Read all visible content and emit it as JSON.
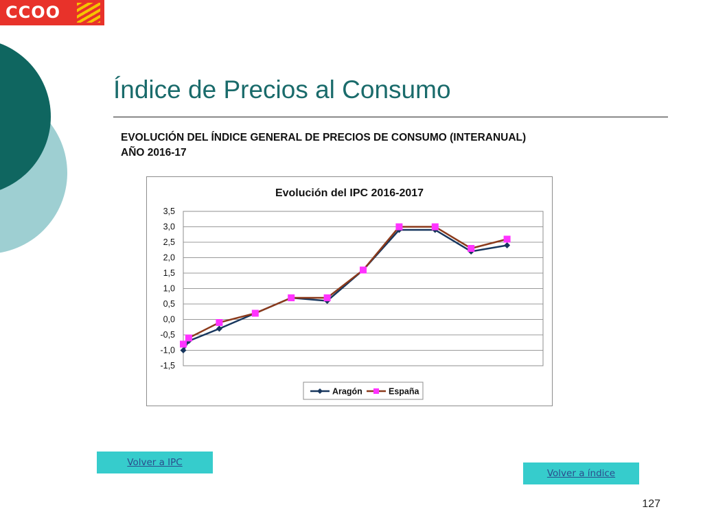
{
  "logo": {
    "text": "CCOO"
  },
  "slide": {
    "title": "Índice de Precios al Consumo",
    "subtitle_line1": "EVOLUCIÓN DEL ÍNDICE GENERAL DE PRECIOS DE CONSUMO (INTERANUAL)",
    "subtitle_line2": "AÑO 2016-17",
    "page_number": "127"
  },
  "nav": {
    "back_ipc": "Volver a IPC",
    "back_index": "Volver a índice"
  },
  "colors": {
    "aragon": "#17365d",
    "espana_line": "#8b3a1b",
    "espana_marker": "#ff33ff",
    "title": "#1a6b6b",
    "button": "#36cccc"
  },
  "chart_data": {
    "type": "line",
    "title": "Evolución del IPC 2016-2017",
    "xlabel": "",
    "ylabel": "",
    "ylim": [
      -1.5,
      3.5
    ],
    "y_ticks": [
      "3,5",
      "3,0",
      "2,5",
      "2,0",
      "1,5",
      "1,0",
      "0,5",
      "0,0",
      "-0,5",
      "-1,0",
      "-1,5"
    ],
    "grid": true,
    "legend_position": "bottom",
    "x": [
      0,
      0.15,
      1,
      2,
      3,
      4,
      5,
      6,
      7,
      8,
      9,
      10
    ],
    "series": [
      {
        "name": "Aragón",
        "marker": "diamond",
        "values": [
          -1.0,
          -0.7,
          -0.3,
          0.2,
          0.7,
          0.6,
          1.6,
          2.9,
          2.9,
          2.2,
          2.4,
          null
        ]
      },
      {
        "name": "España",
        "marker": "square",
        "values": [
          -0.8,
          -0.6,
          -0.1,
          0.2,
          0.7,
          0.7,
          1.6,
          3.0,
          3.0,
          2.3,
          2.6,
          null
        ]
      }
    ]
  }
}
